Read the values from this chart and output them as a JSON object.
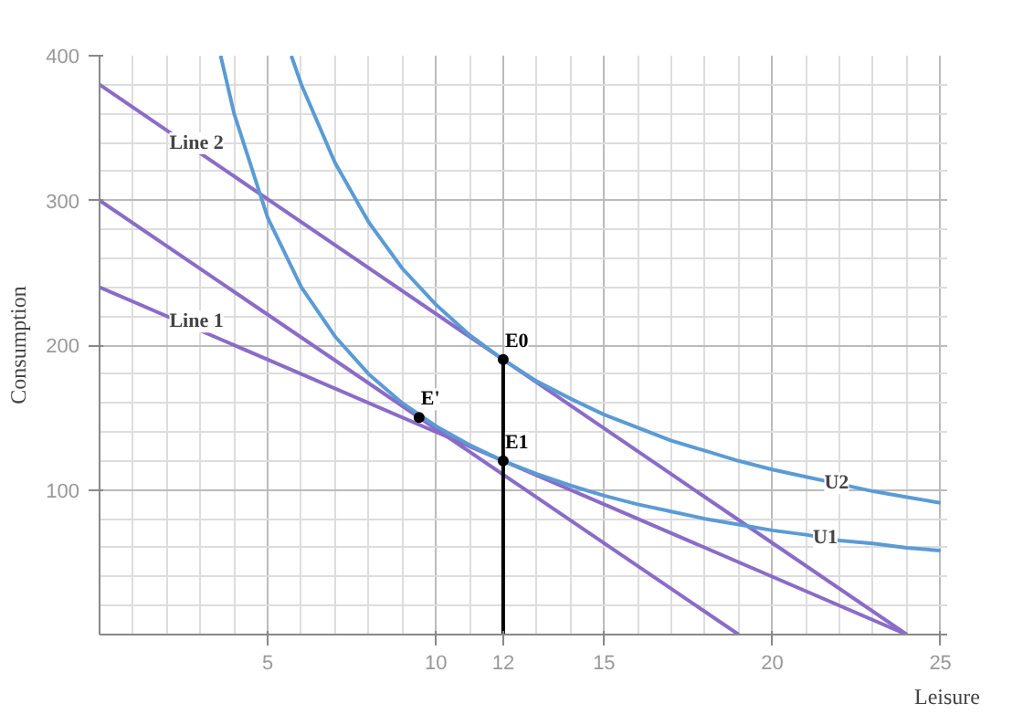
{
  "chart_data": {
    "type": "line",
    "xlabel": "Leisure",
    "ylabel": "Consumption",
    "xlim": [
      0,
      25.2
    ],
    "ylim": [
      0,
      400
    ],
    "xticks": [
      5,
      10,
      {
        "value": 12,
        "label": "12"
      },
      15,
      20,
      25
    ],
    "yticks": [
      100,
      200,
      300,
      400
    ],
    "grid": true,
    "marker": "none",
    "line_style": "solid",
    "series": [
      {
        "name": "Line 2",
        "color": "#8a6cc8",
        "x": [
          0,
          24
        ],
        "values": [
          380,
          0
        ]
      },
      {
        "name": "Line 1",
        "color": "#8a6cc8",
        "x": [
          0,
          24
        ],
        "values": [
          240,
          0
        ]
      },
      {
        "color": "#8a6cc8",
        "x": [
          0,
          19
        ],
        "values": [
          300,
          0
        ]
      },
      {
        "name": "U2",
        "color": "#5b9bd5",
        "x": [
          5.7,
          6,
          7,
          8,
          9,
          10,
          11,
          12,
          13,
          14,
          15,
          16,
          17,
          18,
          19,
          20,
          21,
          22,
          23,
          24,
          25
        ],
        "values": [
          400,
          380,
          326,
          285,
          253,
          228,
          207,
          190,
          175,
          163,
          152,
          143,
          134,
          127,
          120,
          114,
          109,
          104,
          99,
          95,
          91
        ]
      },
      {
        "name": "U1",
        "color": "#5b9bd5",
        "x": [
          3.6,
          4,
          5,
          6,
          7,
          8,
          9,
          10,
          11,
          12,
          13,
          14,
          15,
          16,
          17,
          18,
          19,
          20,
          21,
          22,
          23,
          24,
          25
        ],
        "values": [
          400,
          360,
          288,
          240,
          206,
          180,
          160,
          144,
          131,
          120,
          111,
          103,
          96,
          90,
          85,
          80,
          76,
          72,
          69,
          65,
          63,
          60,
          58
        ]
      },
      {
        "color": "#000000",
        "x": [
          12,
          12
        ],
        "values": [
          0,
          190
        ]
      },
      {
        "type": "scatter",
        "marker": "circle",
        "color": "#000000",
        "x": [
          12,
          12,
          9.5
        ],
        "values": [
          190,
          120,
          150
        ],
        "value_labels": [
          "E0",
          "E1",
          "E'"
        ]
      }
    ]
  }
}
